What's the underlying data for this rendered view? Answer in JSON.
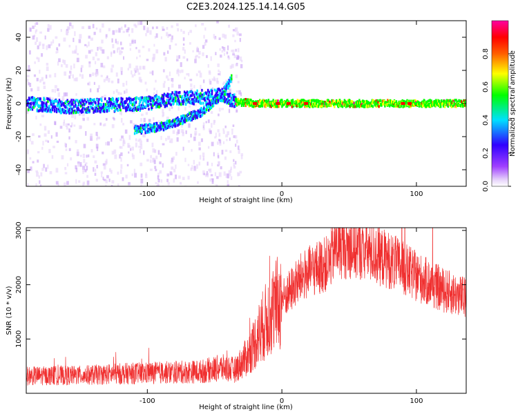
{
  "title": "C2E3.2024.125.14.14.G05",
  "chart_data": [
    {
      "type": "heatmap",
      "xlabel": "Height of straight line (km)",
      "ylabel": "Frequency (Hz)",
      "xlim": [
        -190,
        137
      ],
      "ylim": [
        -50,
        50
      ],
      "xticks": [
        -100,
        0,
        100
      ],
      "yticks": [
        -40,
        -20,
        0,
        20,
        40
      ],
      "colorbar": {
        "label": "Normalized spectral amplitude",
        "range": [
          0.0,
          1.0
        ],
        "ticks": [
          0.0,
          0.2,
          0.4,
          0.6,
          0.8
        ],
        "colormap": [
          "#ffffff",
          "#e6d2fa",
          "#a040ff",
          "#3000ff",
          "#00e0ff",
          "#00ff00",
          "#ffff00",
          "#ff6000",
          "#ff0000",
          "#ff00a0"
        ]
      },
      "tracks": [
        {
          "name": "main",
          "points": [
            [
              -190,
              0
            ],
            [
              -160,
              -2
            ],
            [
              -130,
              -1
            ],
            [
              -100,
              0
            ],
            [
              -80,
              3
            ],
            [
              -60,
              4
            ],
            [
              -45,
              5
            ],
            [
              -35,
              1
            ],
            [
              -20,
              0
            ],
            [
              0,
              0
            ],
            [
              50,
              0
            ],
            [
              100,
              0
            ],
            [
              137,
              0
            ]
          ]
        },
        {
          "name": "branch",
          "points": [
            [
              -110,
              -16
            ],
            [
              -90,
              -14
            ],
            [
              -75,
              -10
            ],
            [
              -60,
              -5
            ],
            [
              -45,
              5
            ],
            [
              -38,
              15
            ]
          ]
        }
      ]
    },
    {
      "type": "line",
      "xlabel": "Height of straight line (km)",
      "ylabel": "SNR (10 * v/v)",
      "xlim": [
        -190,
        137
      ],
      "ylim": [
        0,
        3050
      ],
      "xticks": [
        -100,
        0,
        100
      ],
      "yticks": [
        1000,
        2000,
        3000
      ],
      "color": "#f03030",
      "trend": [
        [
          -190,
          320
        ],
        [
          -150,
          330
        ],
        [
          -120,
          360
        ],
        [
          -90,
          380
        ],
        [
          -60,
          400
        ],
        [
          -45,
          470
        ],
        [
          -35,
          430
        ],
        [
          -25,
          700
        ],
        [
          -15,
          1200
        ],
        [
          -5,
          1600
        ],
        [
          5,
          1850
        ],
        [
          15,
          2150
        ],
        [
          25,
          2300
        ],
        [
          35,
          2400
        ],
        [
          40,
          2700
        ],
        [
          60,
          2650
        ],
        [
          80,
          2450
        ],
        [
          100,
          2150
        ],
        [
          120,
          1900
        ],
        [
          137,
          1750
        ]
      ]
    }
  ]
}
